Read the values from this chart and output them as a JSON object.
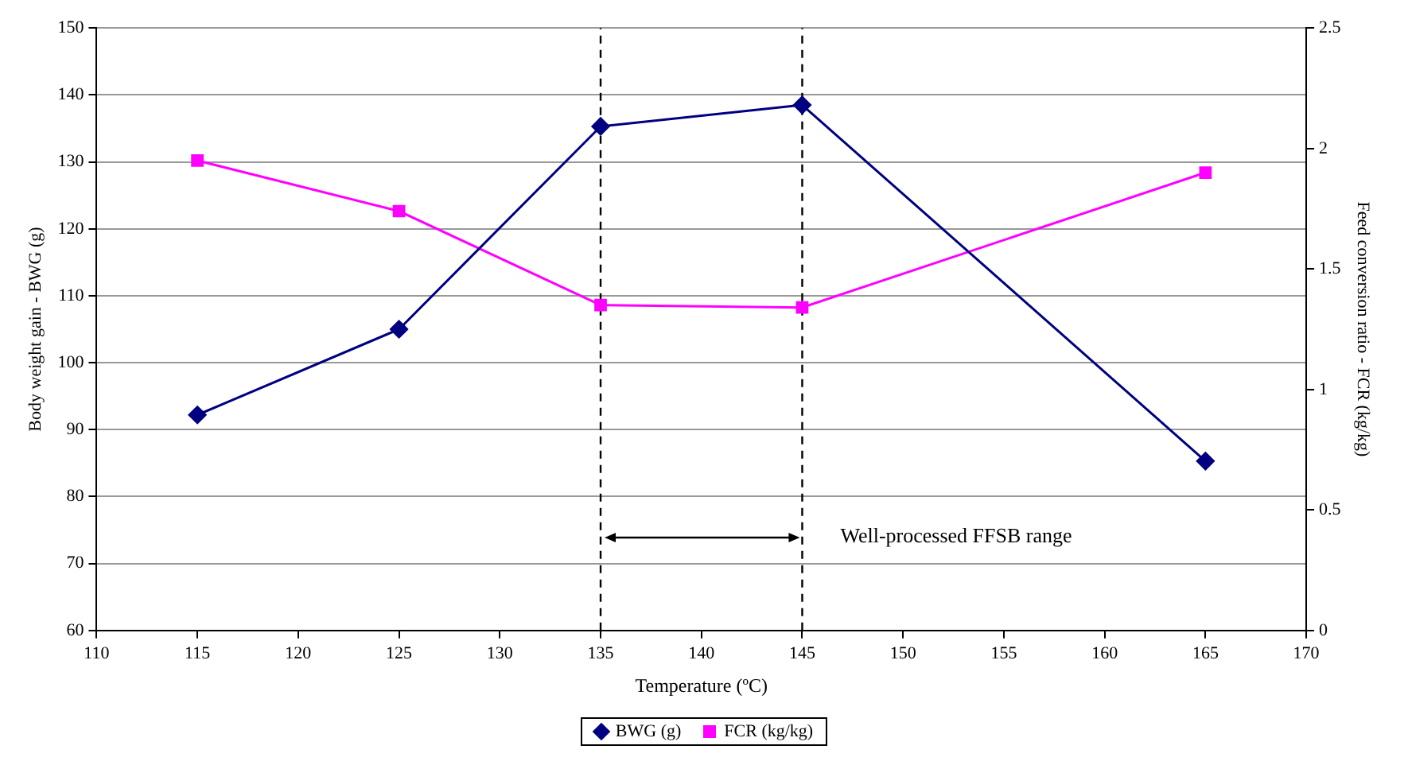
{
  "chart_data": {
    "type": "line",
    "xlabel": "Temperature (ºC)",
    "ylabel": "Body weight gain - BWG (g)",
    "y2label": "Feed conversion ratio - FCR (kg/kg)",
    "x": [
      115,
      125,
      135,
      145,
      165
    ],
    "series": [
      {
        "name": "BWG (g)",
        "color": "#000080",
        "marker": "diamond",
        "values": [
          92.2,
          105,
          135.3,
          138.5,
          85.3
        ]
      },
      {
        "name": "FCR (kg/kg)",
        "color": "#ff00ff",
        "marker": "square",
        "axis": "y2",
        "values": [
          1.95,
          1.74,
          1.35,
          1.34,
          1.9
        ]
      }
    ],
    "xlim": [
      110,
      170
    ],
    "xticks": [
      110,
      115,
      120,
      125,
      130,
      135,
      140,
      145,
      150,
      155,
      160,
      165,
      170
    ],
    "ylim": [
      60,
      150
    ],
    "yticks": [
      60,
      70,
      80,
      90,
      100,
      110,
      120,
      130,
      140,
      150
    ],
    "y2lim": [
      0,
      2.5
    ],
    "y2ticks": [
      0,
      0.5,
      1,
      1.5,
      2,
      2.5
    ],
    "ref_lines": [
      {
        "axis": "x",
        "value": 135,
        "line_style": "dashed",
        "color": "#000000"
      },
      {
        "axis": "x",
        "value": 145,
        "line_style": "dashed",
        "color": "#000000"
      }
    ],
    "annotations": [
      "Well-processed FFSB range"
    ],
    "grid": "y",
    "legend": "bottom"
  }
}
